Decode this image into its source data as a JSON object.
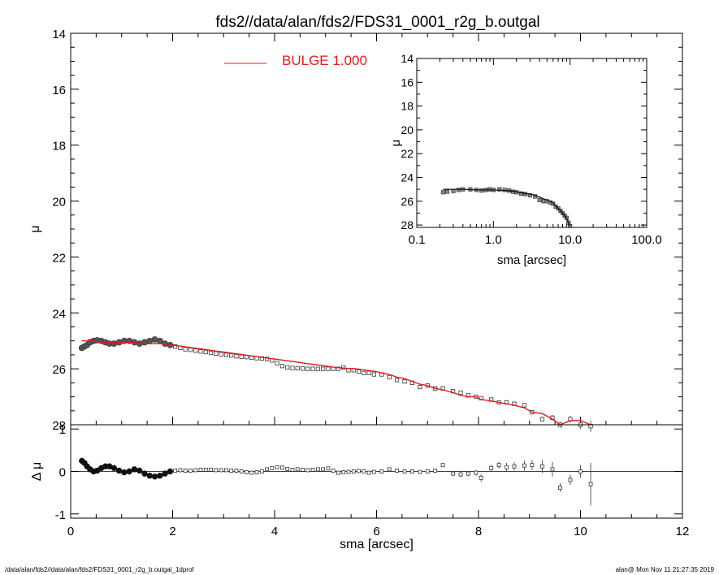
{
  "title": "fds2//data/alan/fds2/FDS31_0001_r2g_b.outgal",
  "footer_left": "/data/alan/fds2//data/alan/fds2/FDS31_0001_r2g_b.outgal_1dprof",
  "footer_right": "alan@  Mon Nov 11 21:27:35 2019",
  "colors": {
    "model": "#e41a1c",
    "data": "#555555",
    "axes": "#000000"
  },
  "chart_data": [
    {
      "panel": "main",
      "type": "line",
      "title": "fds2//data/alan/fds2/FDS31_0001_r2g_b.outgal",
      "xlabel": "sma [arcsec]",
      "ylabel": "μ",
      "xlim": [
        0,
        12
      ],
      "ylim": [
        28,
        14
      ],
      "y_inverted": true,
      "xticks": [
        "0",
        "2",
        "4",
        "6",
        "8",
        "10",
        "12"
      ],
      "yticks": [
        "14",
        "16",
        "18",
        "20",
        "22",
        "24",
        "26",
        "28"
      ],
      "legend": {
        "label": "BULGE  1.000",
        "color": "#e41a1c",
        "position": "top-center"
      },
      "series": [
        {
          "name": "data",
          "style": "open squares with error bars",
          "x": [
            0.22,
            0.27,
            0.32,
            0.38,
            0.45,
            0.52,
            0.6,
            0.68,
            0.76,
            0.85,
            0.95,
            1.05,
            1.15,
            1.25,
            1.35,
            1.45,
            1.55,
            1.65,
            1.75,
            1.85,
            1.95,
            2.05,
            2.15,
            2.25,
            2.35,
            2.45,
            2.55,
            2.65,
            2.75,
            2.85,
            2.95,
            3.05,
            3.15,
            3.25,
            3.35,
            3.45,
            3.55,
            3.65,
            3.75,
            3.85,
            3.95,
            4.05,
            4.15,
            4.25,
            4.35,
            4.45,
            4.55,
            4.65,
            4.75,
            4.85,
            4.95,
            5.05,
            5.15,
            5.25,
            5.35,
            5.45,
            5.55,
            5.65,
            5.75,
            5.85,
            5.95,
            6.1,
            6.25,
            6.4,
            6.55,
            6.7,
            6.85,
            7.0,
            7.15,
            7.3,
            7.5,
            7.65,
            7.8,
            7.95,
            8.05,
            8.25,
            8.4,
            8.55,
            8.7,
            8.9,
            9.05,
            9.25,
            9.45,
            9.6,
            9.8,
            10.0,
            10.2
          ],
          "y": [
            25.25,
            25.2,
            25.15,
            25.05,
            25.0,
            24.98,
            25.0,
            25.05,
            25.1,
            25.1,
            25.05,
            25.0,
            25.0,
            25.05,
            25.1,
            25.05,
            25.0,
            24.95,
            25.0,
            25.1,
            25.15,
            25.2,
            25.25,
            25.3,
            25.32,
            25.35,
            25.38,
            25.4,
            25.43,
            25.45,
            25.48,
            25.5,
            25.52,
            25.55,
            25.57,
            25.58,
            25.6,
            25.62,
            25.63,
            25.65,
            25.7,
            25.8,
            25.9,
            25.95,
            25.97,
            25.98,
            25.99,
            26.0,
            26.0,
            26.0,
            26.0,
            26.0,
            26.0,
            26.0,
            25.95,
            26.05,
            26.05,
            26.1,
            26.15,
            26.15,
            26.2,
            26.2,
            26.3,
            26.4,
            26.45,
            26.5,
            26.65,
            26.6,
            26.7,
            26.7,
            26.8,
            26.85,
            26.95,
            27.0,
            27.05,
            27.1,
            27.2,
            27.2,
            27.25,
            27.3,
            27.55,
            27.8,
            27.75,
            28.0,
            27.8,
            28.0,
            28.05
          ],
          "err": [
            0.02,
            0.02,
            0.02,
            0.02,
            0.02,
            0.02,
            0.02,
            0.02,
            0.02,
            0.02,
            0.02,
            0.02,
            0.02,
            0.02,
            0.02,
            0.02,
            0.02,
            0.02,
            0.02,
            0.02,
            0.02,
            0.02,
            0.02,
            0.02,
            0.02,
            0.02,
            0.02,
            0.02,
            0.02,
            0.02,
            0.02,
            0.02,
            0.02,
            0.02,
            0.02,
            0.02,
            0.02,
            0.02,
            0.02,
            0.02,
            0.02,
            0.02,
            0.02,
            0.02,
            0.02,
            0.02,
            0.02,
            0.02,
            0.02,
            0.02,
            0.02,
            0.02,
            0.02,
            0.02,
            0.02,
            0.02,
            0.02,
            0.02,
            0.02,
            0.02,
            0.02,
            0.02,
            0.02,
            0.02,
            0.02,
            0.02,
            0.02,
            0.02,
            0.02,
            0.02,
            0.03,
            0.03,
            0.03,
            0.04,
            0.05,
            0.05,
            0.05,
            0.05,
            0.06,
            0.07,
            0.08,
            0.08,
            0.1,
            0.1,
            0.12,
            0.15,
            0.2
          ]
        },
        {
          "name": "BULGE  1.000",
          "style": "red line",
          "x": [
            0.22,
            0.4,
            0.6,
            0.8,
            1.0,
            1.2,
            1.4,
            1.6,
            1.8,
            2.0,
            2.2,
            2.4,
            2.6,
            2.8,
            3.0,
            3.2,
            3.4,
            3.6,
            3.8,
            4.0,
            4.2,
            4.4,
            4.6,
            4.8,
            5.0,
            5.2,
            5.4,
            5.6,
            5.8,
            6.0,
            6.1,
            6.25,
            6.4,
            6.55,
            6.7,
            6.85,
            7.0,
            7.15,
            7.3,
            7.5,
            7.65,
            7.8,
            7.95,
            8.05,
            8.25,
            8.4,
            8.55,
            8.7,
            8.9,
            9.05,
            9.25,
            9.45,
            9.6,
            9.8,
            10.0,
            10.2
          ],
          "y": [
            25.0,
            25.0,
            25.05,
            25.05,
            25.05,
            25.05,
            25.1,
            25.1,
            25.1,
            25.15,
            25.2,
            25.25,
            25.3,
            25.35,
            25.4,
            25.45,
            25.5,
            25.55,
            25.6,
            25.65,
            25.7,
            25.75,
            25.8,
            25.85,
            25.9,
            25.95,
            25.98,
            26.0,
            26.05,
            26.1,
            26.15,
            26.2,
            26.3,
            26.35,
            26.45,
            26.55,
            26.6,
            26.7,
            26.75,
            26.85,
            26.95,
            27.0,
            27.0,
            27.1,
            27.15,
            27.2,
            27.25,
            27.3,
            27.4,
            27.55,
            27.6,
            27.8,
            28.0,
            27.85,
            27.85,
            28.0
          ]
        }
      ]
    },
    {
      "panel": "residual",
      "type": "scatter",
      "xlabel": "sma [arcsec]",
      "ylabel": "Δ μ",
      "xlim": [
        0,
        12
      ],
      "ylim": [
        -1.1,
        1.1
      ],
      "xticks": [
        "0",
        "2",
        "4",
        "6",
        "8",
        "10",
        "12"
      ],
      "yticks": [
        "1",
        "0",
        "-1"
      ],
      "series": [
        {
          "name": "residual",
          "x": [
            0.22,
            0.27,
            0.32,
            0.38,
            0.45,
            0.52,
            0.6,
            0.68,
            0.76,
            0.85,
            0.95,
            1.05,
            1.15,
            1.25,
            1.35,
            1.45,
            1.55,
            1.65,
            1.75,
            1.85,
            1.95,
            2.05,
            2.15,
            2.25,
            2.35,
            2.45,
            2.55,
            2.65,
            2.75,
            2.85,
            2.95,
            3.05,
            3.15,
            3.25,
            3.35,
            3.45,
            3.55,
            3.65,
            3.75,
            3.85,
            3.95,
            4.05,
            4.15,
            4.25,
            4.35,
            4.45,
            4.55,
            4.65,
            4.75,
            4.85,
            4.95,
            5.05,
            5.15,
            5.25,
            5.35,
            5.45,
            5.55,
            5.65,
            5.75,
            5.85,
            5.95,
            6.1,
            6.25,
            6.4,
            6.55,
            6.7,
            6.85,
            7.0,
            7.15,
            7.3,
            7.5,
            7.65,
            7.8,
            7.95,
            8.05,
            8.25,
            8.4,
            8.55,
            8.7,
            8.9,
            9.05,
            9.25,
            9.45,
            9.6,
            9.8,
            10.0,
            10.2
          ],
          "y": [
            0.25,
            0.2,
            0.12,
            0.05,
            0.0,
            0.02,
            0.08,
            0.12,
            0.12,
            0.08,
            0.02,
            -0.02,
            0.0,
            0.05,
            0.02,
            -0.05,
            -0.1,
            -0.12,
            -0.1,
            -0.05,
            0.0,
            0.02,
            0.03,
            0.02,
            0.02,
            0.03,
            0.04,
            0.04,
            0.04,
            0.03,
            0.03,
            0.03,
            0.02,
            0.02,
            0.0,
            -0.02,
            -0.03,
            -0.02,
            0.0,
            0.05,
            0.08,
            0.1,
            0.09,
            0.06,
            0.04,
            0.05,
            0.04,
            0.03,
            0.04,
            0.05,
            0.05,
            0.07,
            0.02,
            -0.03,
            -0.02,
            -0.01,
            0.0,
            0.01,
            0.0,
            -0.03,
            -0.01,
            0.0,
            0.05,
            0.02,
            0.0,
            0.0,
            -0.01,
            0.0,
            0.02,
            0.15,
            -0.05,
            -0.07,
            -0.05,
            -0.03,
            -0.15,
            0.08,
            0.15,
            0.1,
            0.12,
            0.14,
            0.15,
            0.12,
            0.05,
            -0.38,
            -0.2,
            0.0,
            -0.3
          ],
          "err": [
            0.02,
            0.02,
            0.02,
            0.02,
            0.02,
            0.02,
            0.02,
            0.02,
            0.02,
            0.02,
            0.02,
            0.02,
            0.02,
            0.02,
            0.02,
            0.02,
            0.02,
            0.02,
            0.02,
            0.02,
            0.02,
            0.02,
            0.02,
            0.02,
            0.02,
            0.02,
            0.02,
            0.02,
            0.02,
            0.02,
            0.02,
            0.02,
            0.02,
            0.02,
            0.02,
            0.02,
            0.02,
            0.02,
            0.02,
            0.02,
            0.02,
            0.02,
            0.02,
            0.02,
            0.02,
            0.02,
            0.02,
            0.02,
            0.02,
            0.02,
            0.02,
            0.02,
            0.02,
            0.02,
            0.02,
            0.02,
            0.02,
            0.02,
            0.02,
            0.02,
            0.02,
            0.02,
            0.02,
            0.02,
            0.02,
            0.02,
            0.02,
            0.02,
            0.02,
            0.03,
            0.05,
            0.06,
            0.06,
            0.07,
            0.09,
            0.08,
            0.08,
            0.1,
            0.1,
            0.12,
            0.12,
            0.15,
            0.17,
            0.1,
            0.12,
            0.15,
            0.5
          ]
        }
      ]
    },
    {
      "panel": "inset",
      "type": "line",
      "xlabel": "sma [arcsec]",
      "ylabel": "μ",
      "xscale": "log",
      "xlim": [
        0.1,
        100.0
      ],
      "ylim": [
        28.2,
        14
      ],
      "y_inverted": true,
      "xticks": [
        "0.1",
        "1.0",
        "10.0",
        "100.0"
      ],
      "yticks": [
        "14",
        "16",
        "18",
        "20",
        "22",
        "24",
        "26",
        "28"
      ],
      "series": [
        {
          "name": "data",
          "x": [
            0.22,
            0.25,
            0.3,
            0.35,
            0.4,
            0.5,
            0.6,
            0.7,
            0.8,
            0.9,
            1.0,
            1.2,
            1.4,
            1.6,
            1.8,
            2.0,
            2.3,
            2.6,
            3.0,
            3.5,
            4.0,
            4.5,
            5.0,
            5.5,
            6.0,
            6.5,
            7.0,
            7.5,
            8.0,
            8.5,
            9.0,
            9.5,
            10.0
          ],
          "y": [
            25.25,
            25.2,
            25.15,
            25.05,
            25.0,
            25.0,
            25.05,
            25.1,
            25.05,
            25.0,
            25.05,
            25.0,
            25.05,
            25.1,
            25.2,
            25.25,
            25.35,
            25.4,
            25.5,
            25.6,
            25.9,
            26.0,
            26.0,
            26.1,
            26.2,
            26.45,
            26.6,
            26.8,
            27.0,
            27.2,
            27.4,
            27.8,
            28.1
          ]
        },
        {
          "name": "model",
          "x": [
            0.22,
            0.3,
            0.4,
            0.6,
            0.8,
            1.0,
            1.4,
            1.8,
            2.2,
            2.6,
            3.0,
            3.5,
            4.0,
            4.5,
            5.0,
            5.5,
            6.0,
            6.5,
            7.0,
            7.5,
            8.0,
            8.5,
            9.0,
            9.5,
            10.0
          ],
          "y": [
            25.0,
            25.0,
            25.0,
            25.05,
            25.05,
            25.05,
            25.1,
            25.15,
            25.25,
            25.35,
            25.4,
            25.5,
            25.65,
            25.8,
            25.9,
            26.0,
            26.15,
            26.4,
            26.6,
            26.8,
            27.0,
            27.2,
            27.4,
            27.8,
            28.1
          ]
        }
      ]
    }
  ]
}
